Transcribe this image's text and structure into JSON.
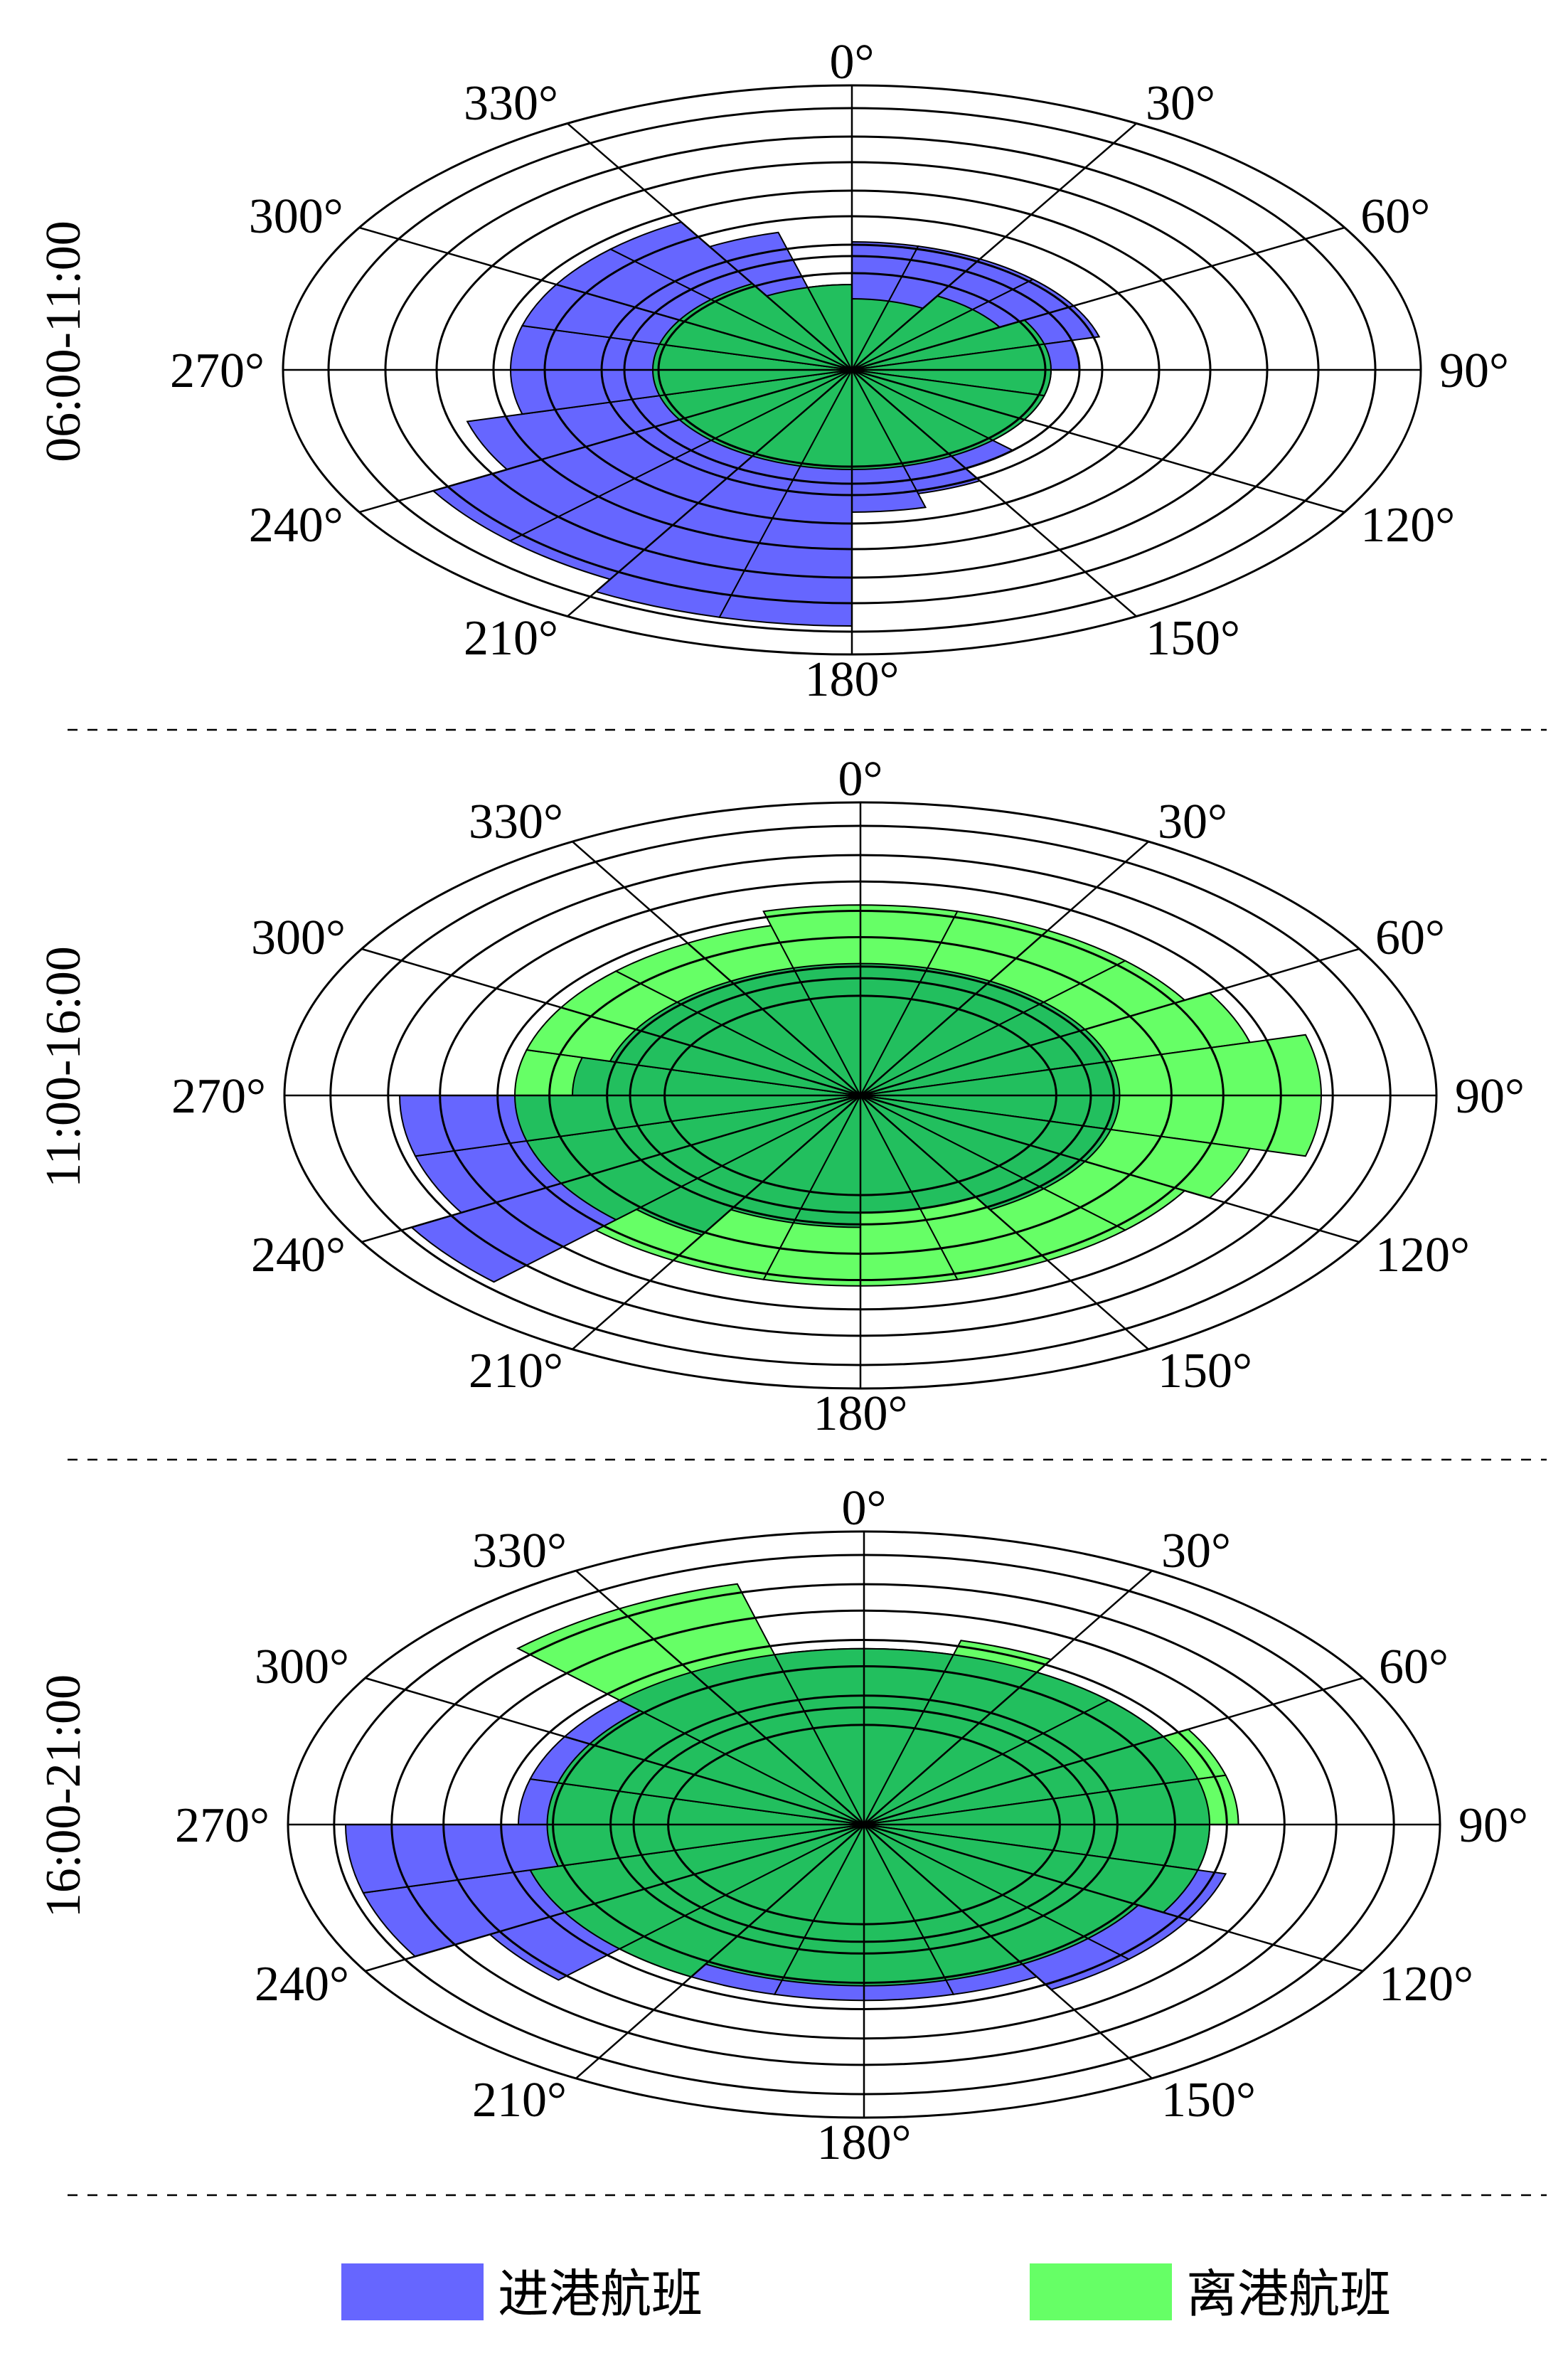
{
  "legend": {
    "arrivals_label": "进港航班",
    "departures_label": "离港航班",
    "arrivals_color": "#6666ff",
    "departures_color": "#66ff66",
    "overlap_color": "#22bf5e"
  },
  "angle_labels": [
    "0°",
    "30°",
    "60°",
    "90°",
    "120°",
    "150°",
    "180°",
    "210°",
    "240°",
    "270°",
    "300°",
    "330°"
  ],
  "chart_data": [
    {
      "type": "polar-bar",
      "period": "06:00-11:00",
      "sector_width_deg": 15,
      "radial_max": 10,
      "series": [
        {
          "name": "进港航班",
          "values": [
            4.5,
            4.5,
            4.5,
            4.5,
            4.5,
            4,
            3.5,
            3.5,
            3.5,
            4,
            4.5,
            5,
            9,
            9,
            8.5,
            8.5,
            7,
            6,
            6,
            6,
            6,
            6,
            5,
            3
          ]
        },
        {
          "name": "离港航班",
          "values": [
            2.5,
            2.5,
            3,
            3,
            3.5,
            3.5,
            3.5,
            3.5,
            3.5,
            3.5,
            3.5,
            3.5,
            3.5,
            3.5,
            3.5,
            3.5,
            3.5,
            3.5,
            3.5,
            3.5,
            3.5,
            3.5,
            3,
            3
          ]
        }
      ]
    },
    {
      "type": "polar-bar",
      "period": "11:00-16:00",
      "sector_width_deg": 15,
      "radial_max": 10,
      "series": [
        {
          "name": "进港航班",
          "values": [
            4.5,
            4.5,
            4.5,
            4.5,
            4.5,
            4.5,
            4.5,
            4.5,
            4.5,
            4.5,
            4,
            4,
            4.5,
            4.5,
            5.5,
            9,
            8,
            8,
            5,
            4.5,
            4.5,
            4.5,
            4.5,
            4.5
          ]
        },
        {
          "name": "离港航班",
          "values": [
            6.5,
            6.5,
            6.5,
            6.5,
            7,
            8,
            8,
            7,
            6.5,
            6.5,
            6.5,
            6.5,
            6.5,
            6.5,
            6.5,
            6,
            6,
            6,
            6,
            6,
            6,
            6,
            6,
            6.5
          ]
        }
      ]
    },
    {
      "type": "polar-bar",
      "period": "16:00-21:00",
      "sector_width_deg": 15,
      "radial_max": 10,
      "series": [
        {
          "name": "进港航班",
          "values": [
            6,
            6,
            6,
            6,
            6,
            6,
            6,
            6.5,
            6.5,
            6.5,
            6,
            6,
            6,
            6,
            6,
            7.5,
            9,
            9,
            6,
            6,
            6,
            6,
            6,
            6
          ]
        },
        {
          "name": "离港航班",
          "values": [
            6,
            6.5,
            6,
            6,
            6.5,
            6.5,
            6,
            6,
            5.5,
            5.5,
            5.5,
            5.5,
            5.5,
            5.5,
            6,
            6,
            6,
            5.5,
            5.5,
            5.5,
            5.5,
            8.5,
            8.5,
            6
          ]
        }
      ]
    }
  ]
}
